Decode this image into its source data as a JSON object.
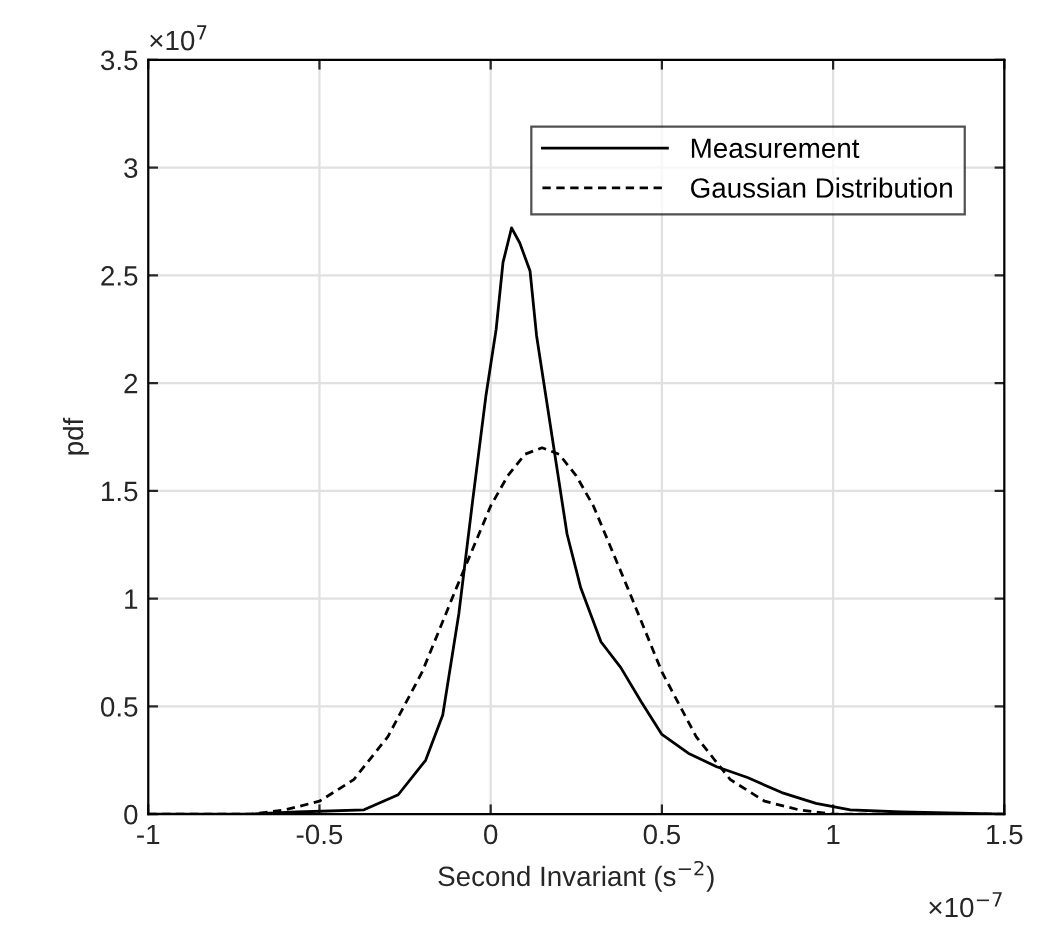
{
  "chart_data": {
    "type": "line",
    "xlabel": "Second Invariant (s$^{−2}$)",
    "ylabel": "pdf",
    "annotations": [
      "×10$^{7}$",
      "×10$^{−7}$"
    ],
    "series": [
      {
        "name": "Measurement",
        "color": "#000000",
        "line_style": "solid",
        "x": [
          -1,
          -0.7,
          -0.567,
          -0.37,
          -0.27,
          -0.19,
          -0.14,
          -0.093,
          -0.053,
          -0.014,
          0.016,
          0.036,
          0.061,
          0.085,
          0.115,
          0.134,
          0.164,
          0.194,
          0.223,
          0.263,
          0.322,
          0.38,
          0.44,
          0.5,
          0.58,
          0.66,
          0.75,
          0.85,
          0.95,
          1.05,
          1.2,
          1.5
        ],
        "values": [
          0,
          0,
          0.01,
          0.02,
          0.09,
          0.25,
          0.46,
          0.93,
          1.45,
          1.94,
          2.25,
          2.56,
          2.72,
          2.65,
          2.52,
          2.22,
          1.91,
          1.6,
          1.3,
          1.05,
          0.8,
          0.68,
          0.52,
          0.37,
          0.28,
          0.22,
          0.17,
          0.1,
          0.05,
          0.02,
          0.01,
          0
        ]
      },
      {
        "name": "Gaussian Distribution",
        "color": "#000000",
        "line_style": "dashed",
        "x": [
          -1,
          -0.7,
          -0.6,
          -0.5,
          -0.4,
          -0.3,
          -0.2,
          -0.1,
          0,
          0.05,
          0.1,
          0.15,
          0.2,
          0.25,
          0.3,
          0.4,
          0.5,
          0.6,
          0.7,
          0.8,
          0.9,
          1.0,
          1.5
        ],
        "values": [
          0,
          0,
          0.02,
          0.06,
          0.16,
          0.36,
          0.66,
          1.05,
          1.43,
          1.57,
          1.67,
          1.7,
          1.67,
          1.57,
          1.43,
          1.05,
          0.66,
          0.36,
          0.16,
          0.06,
          0.02,
          0,
          0
        ]
      }
    ],
    "xlim": [
      -1,
      1.5
    ],
    "xticks": [
      -1,
      -0.5,
      0,
      0.5,
      1,
      1.5
    ],
    "ylim": [
      0,
      3.5
    ],
    "yticks": [
      0,
      0.5,
      1,
      1.5,
      2,
      2.5,
      3,
      3.5
    ],
    "grid": true,
    "legend": "top right"
  }
}
